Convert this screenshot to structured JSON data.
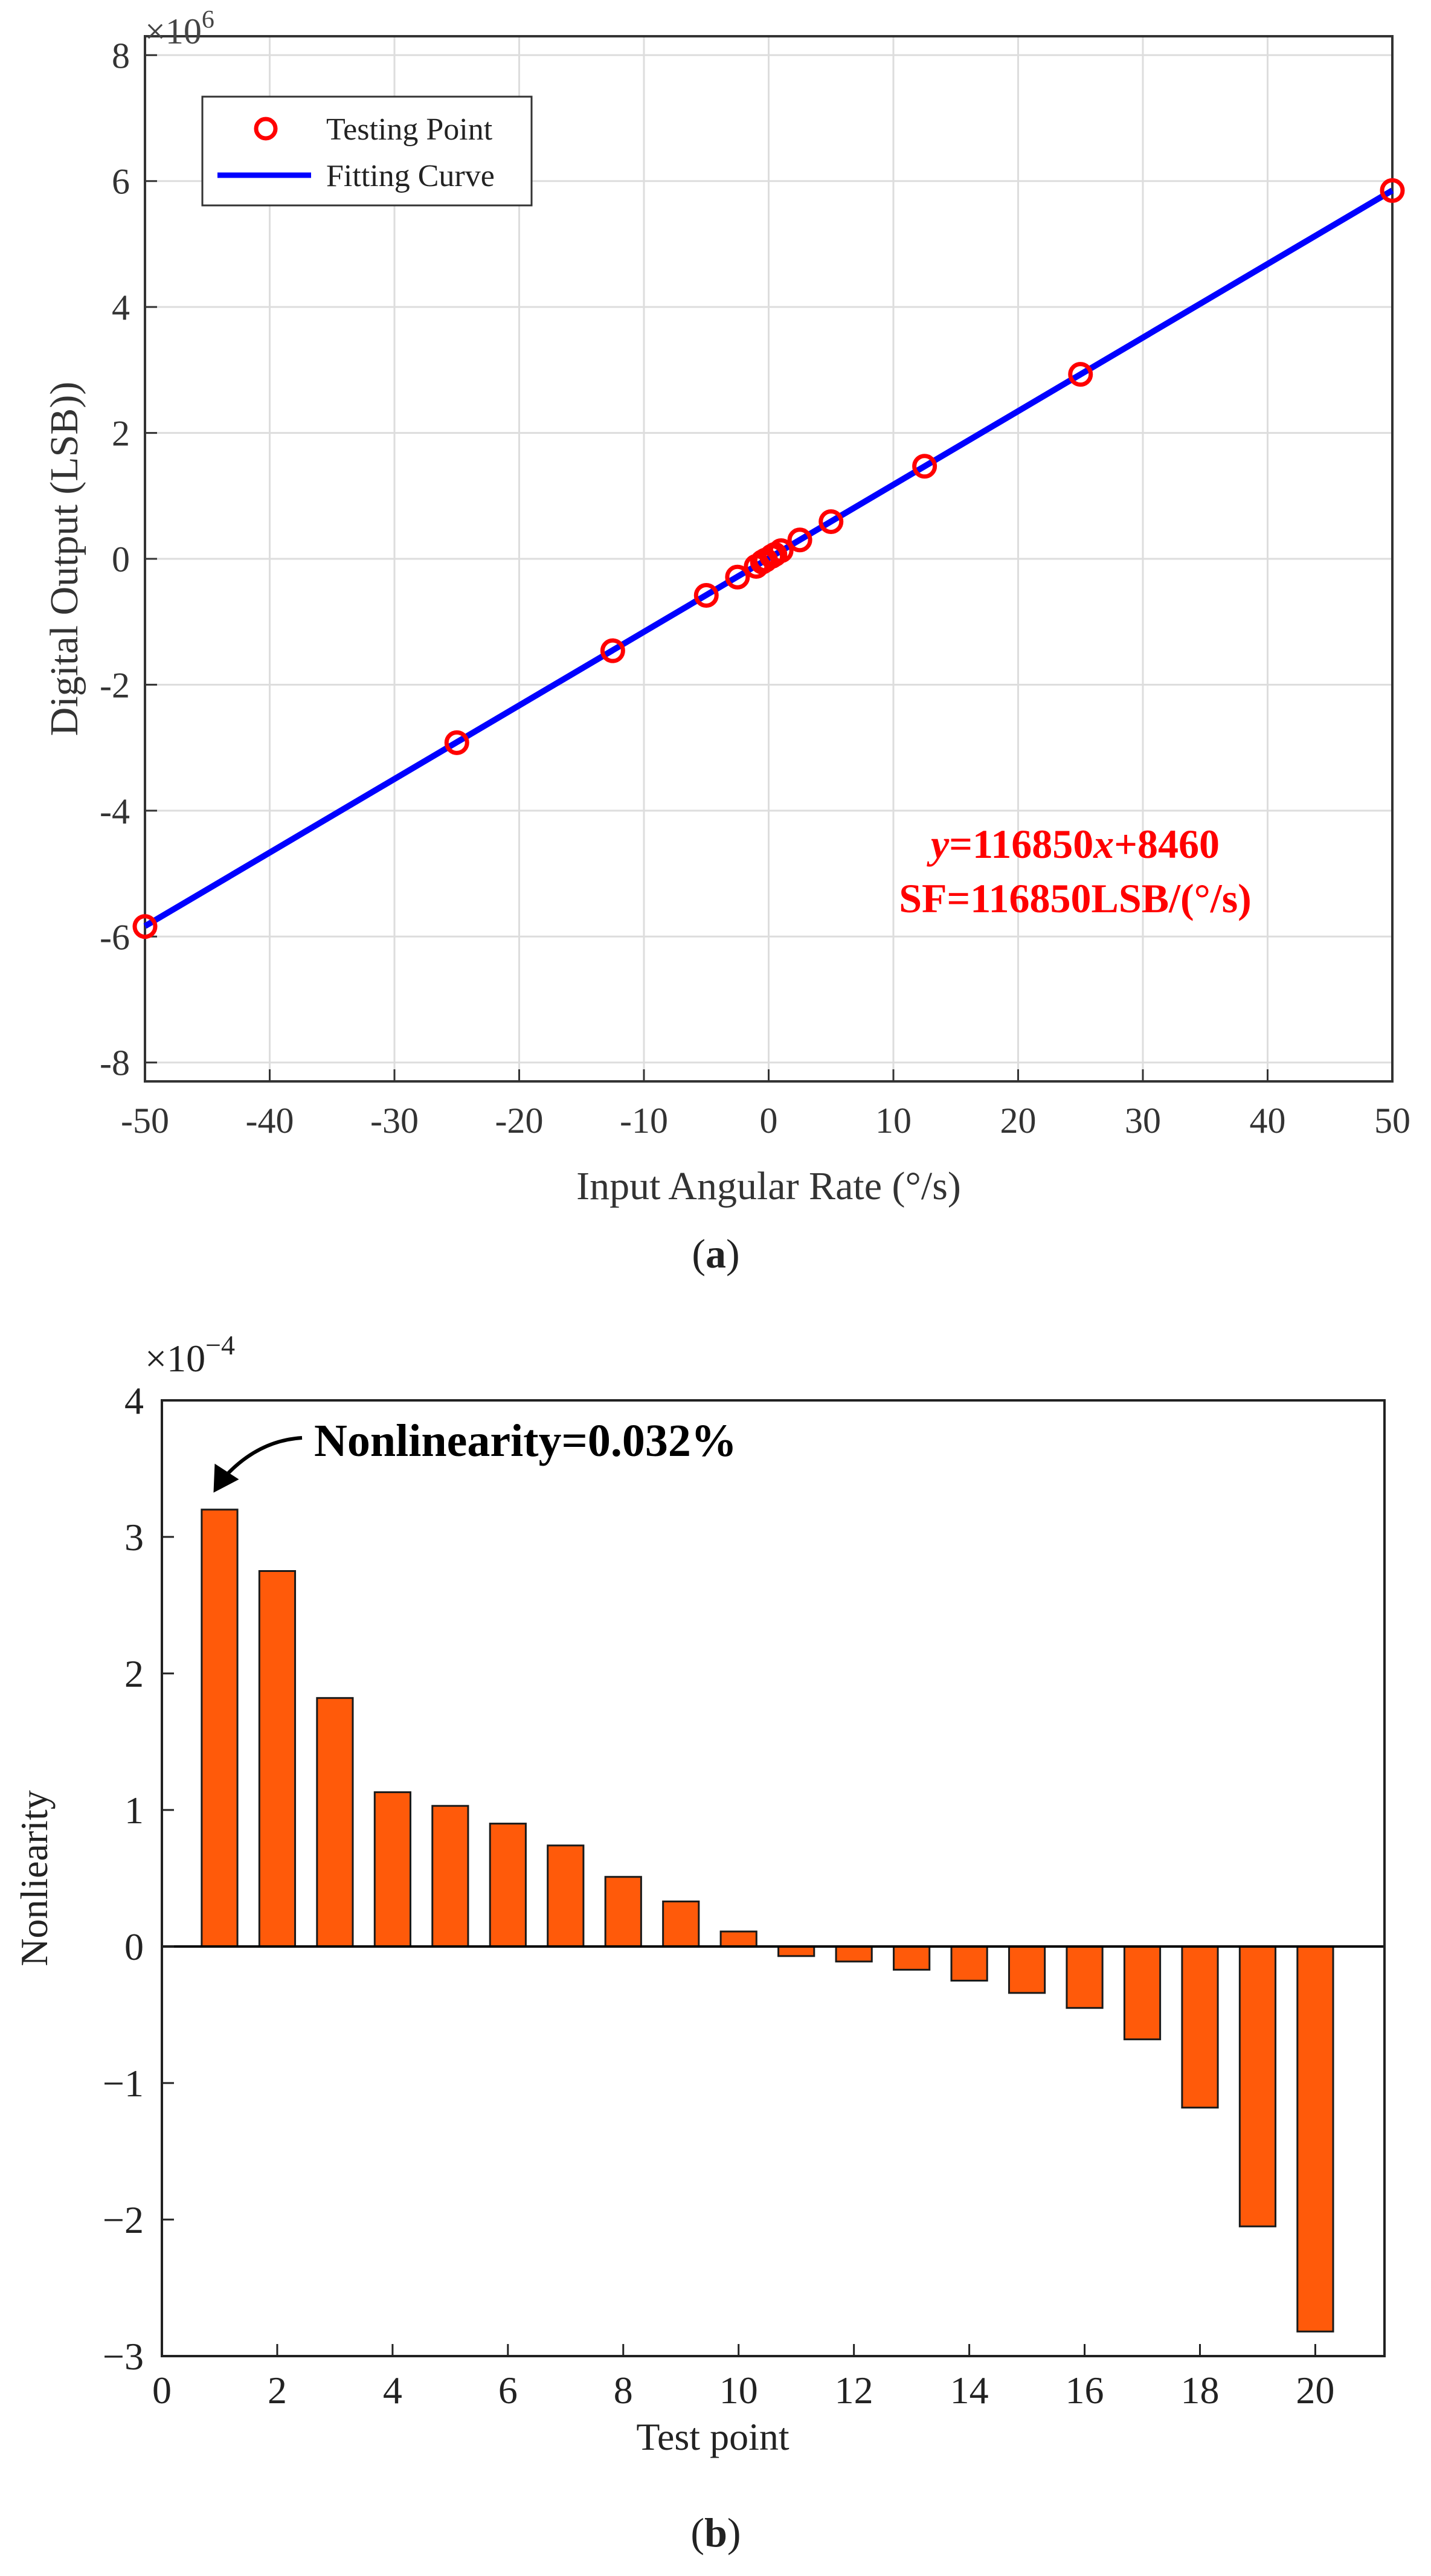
{
  "chart_data": [
    {
      "type": "scatter",
      "panel_label": "a",
      "xlabel": "Input Angular Rate (°/s)",
      "ylabel": "Digital Output (LSB))",
      "xlim": [
        -50,
        50
      ],
      "ylim": [
        -8.3,
        8.3
      ],
      "y_exponent_label": "×10^6",
      "y_exponent_base": "×10",
      "y_exponent_power": "6",
      "xticks": [
        -50,
        -40,
        -30,
        -20,
        -10,
        0,
        10,
        20,
        30,
        40,
        50
      ],
      "yticks": [
        -8,
        -6,
        -4,
        -2,
        0,
        2,
        4,
        6,
        8
      ],
      "grid": true,
      "legend_position": "top-left",
      "legend": [
        "Testing Point",
        "Fitting Curve"
      ],
      "series": [
        {
          "name": "Testing Point",
          "kind": "points",
          "color": "#ff0000",
          "x": [
            -50,
            -25,
            -12.5,
            -5,
            -2.5,
            -1,
            -0.5,
            -0.25,
            0.25,
            0.5,
            1,
            2.5,
            5,
            12.5,
            25,
            50
          ],
          "y": [
            -5.84,
            -2.92,
            -1.46,
            -0.58,
            -0.29,
            -0.12,
            -0.05,
            -0.02,
            0.04,
            0.07,
            0.13,
            0.3,
            0.59,
            1.47,
            2.93,
            5.85
          ]
        },
        {
          "name": "Fitting Curve",
          "kind": "line",
          "color": "#0000ff",
          "x": [
            -50,
            50
          ],
          "y": [
            -5.834,
            5.851
          ]
        }
      ],
      "annotations": {
        "equation_y": "y",
        "equation_mid": "=116850",
        "equation_x": "x",
        "equation_end": "+8460",
        "scale_factor": "SF=116850LSB/(°/s)"
      },
      "annotation_color": "#ff0000"
    },
    {
      "type": "bar",
      "panel_label": "b",
      "xlabel": "Test point",
      "ylabel": "Nonliearity",
      "xlim": [
        0,
        21.2
      ],
      "ylim": [
        -3,
        4
      ],
      "y_exponent_label": "×10^-4",
      "y_exponent_base": "×10",
      "y_exponent_power": "−4",
      "xticks": [
        0,
        2,
        4,
        6,
        8,
        10,
        12,
        14,
        16,
        18,
        20
      ],
      "yticks": [
        -3,
        -2,
        -1,
        0,
        1,
        2,
        3,
        4
      ],
      "ytick_labels": [
        "−3",
        "−2",
        "−1",
        "0",
        "1",
        "2",
        "3",
        "4"
      ],
      "grid": false,
      "bar_color": "#ff5a0a",
      "categories": [
        1,
        2,
        3,
        4,
        5,
        6,
        7,
        8,
        9,
        10,
        11,
        12,
        13,
        14,
        15,
        16,
        17,
        18,
        19,
        20
      ],
      "values": [
        3.2,
        2.75,
        1.82,
        1.13,
        1.03,
        0.9,
        0.74,
        0.51,
        0.33,
        0.11,
        -0.07,
        -0.11,
        -0.17,
        -0.25,
        -0.34,
        -0.45,
        -0.68,
        -1.18,
        -2.05,
        -2.82
      ],
      "annotation": "Nonlinearity=0.032%"
    }
  ]
}
